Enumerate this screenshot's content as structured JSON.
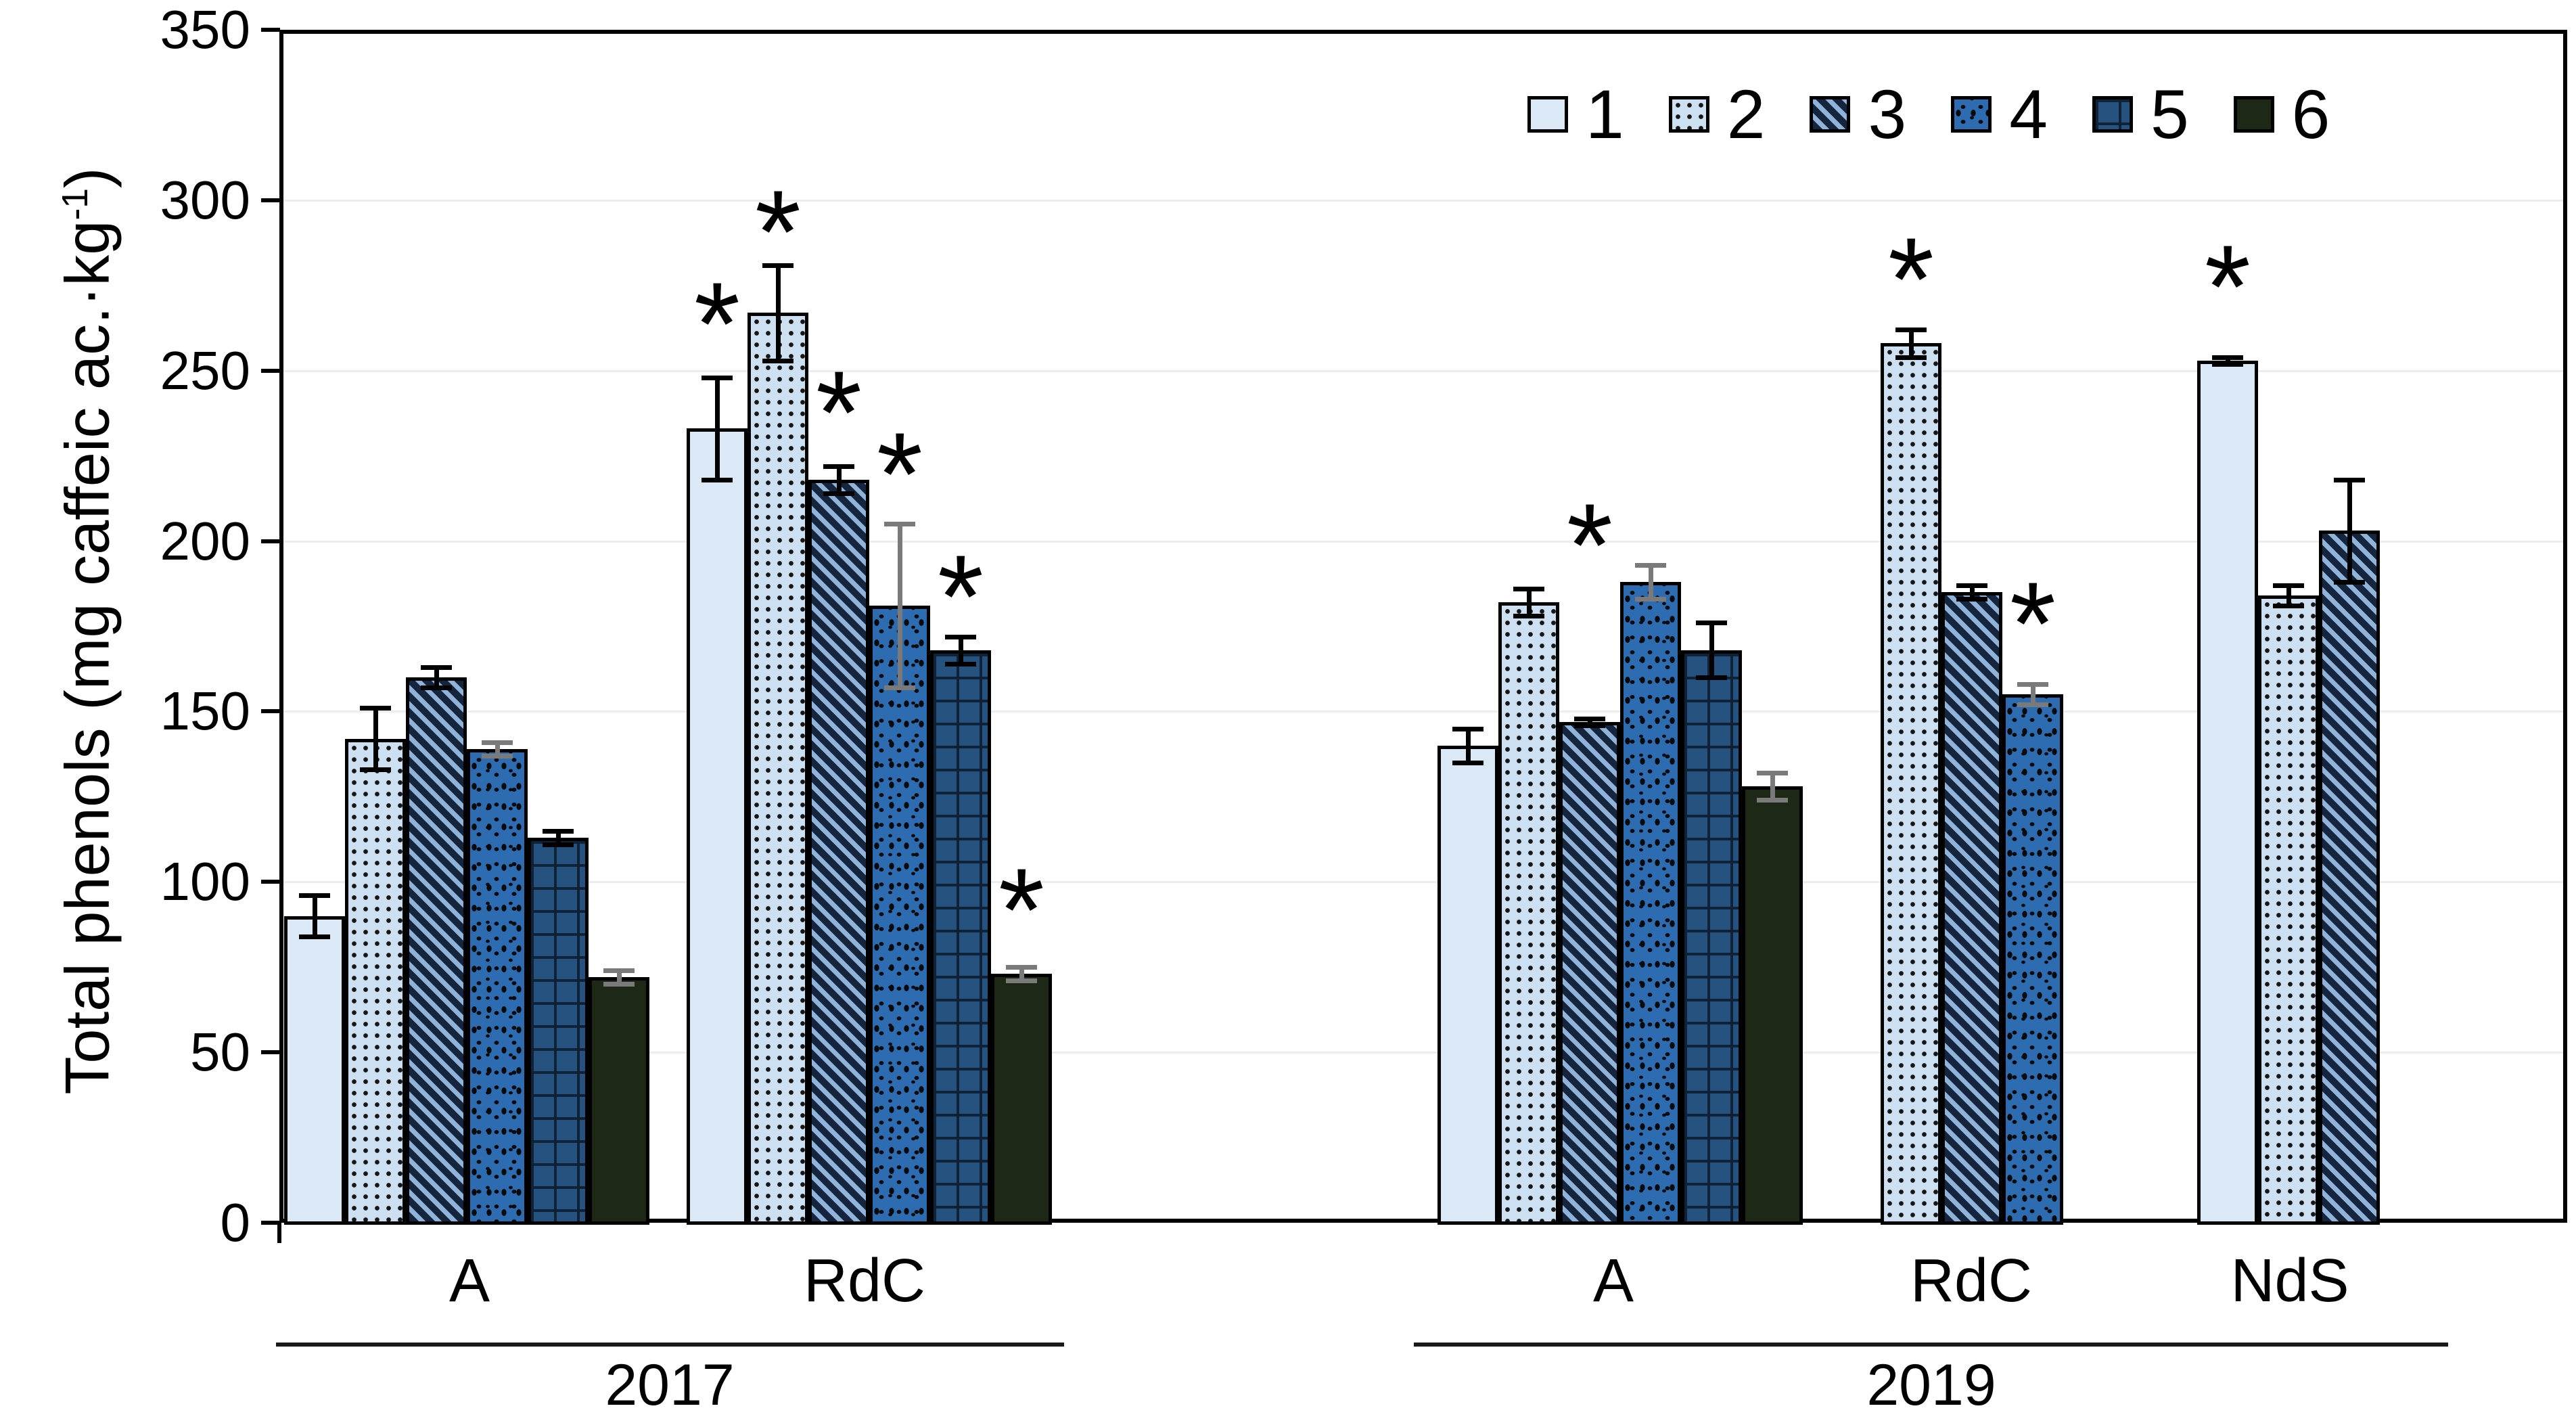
{
  "chart_data": {
    "type": "bar",
    "title": "",
    "ylabel": {
      "prefix": "Total phenols (mg caffeic ac.·kg",
      "superscript": "-1",
      "suffix": ")"
    },
    "ylim": [
      0,
      350
    ],
    "ytick_step": 50,
    "ytick_labels": [
      "0",
      "50",
      "100",
      "150",
      "200",
      "250",
      "300",
      "350"
    ],
    "grid": "horizontal light-gray lines every 50, full black plot frame",
    "grid_color": "#ededed",
    "frame_color": "#000000",
    "star_char": "*",
    "error_bar_colors": {
      "black": "#000000",
      "gray": "#7a7a7a"
    },
    "legend": {
      "position": "top-right inside plot",
      "entries": [
        "1",
        "2",
        "3",
        "4",
        "5",
        "6"
      ]
    },
    "series": [
      {
        "id": "1",
        "label": "1",
        "pattern": "plain-solid",
        "fill": "#dbe8f5"
      },
      {
        "id": "2",
        "label": "2",
        "pattern": "square-dots",
        "fill": "#cde0f1",
        "accent": "#161616"
      },
      {
        "id": "3",
        "label": "3",
        "pattern": "diagonal-stripes",
        "fill": "#8fb3d9",
        "accent": "#15253d"
      },
      {
        "id": "4",
        "label": "4",
        "pattern": "speckle",
        "fill": "#2e6cb2",
        "accent": "#0a0a0a"
      },
      {
        "id": "5",
        "label": "5",
        "pattern": "dashed-grid",
        "fill": "#26527f",
        "accent": "#0e2033"
      },
      {
        "id": "6",
        "label": "6",
        "pattern": "solid-dark-green",
        "fill": "#1d2916"
      }
    ],
    "groups": [
      {
        "year": "2017",
        "site": "A",
        "bars": [
          {
            "series": "1",
            "value": 90,
            "error": 6,
            "error_color": "black",
            "star": false
          },
          {
            "series": "2",
            "value": 142,
            "error": 9,
            "error_color": "black",
            "star": false
          },
          {
            "series": "3",
            "value": 160,
            "error": 3,
            "error_color": "black",
            "star": false
          },
          {
            "series": "4",
            "value": 139,
            "error": 2,
            "error_color": "gray",
            "star": false
          },
          {
            "series": "5",
            "value": 113,
            "error": 2,
            "error_color": "black",
            "star": false
          },
          {
            "series": "6",
            "value": 72,
            "error": 2,
            "error_color": "gray",
            "star": false
          }
        ]
      },
      {
        "year": "2017",
        "site": "RdC",
        "bars": [
          {
            "series": "1",
            "value": 233,
            "error": 15,
            "error_color": "black",
            "star": true,
            "star_y": 271
          },
          {
            "series": "2",
            "value": 267,
            "error": 14,
            "error_color": "black",
            "star": true,
            "star_y": 298
          },
          {
            "series": "3",
            "value": 218,
            "error": 4,
            "error_color": "black",
            "star": true,
            "star_y": 245
          },
          {
            "series": "4",
            "value": 181,
            "error": 24,
            "error_color": "gray",
            "star": true,
            "star_y": 227
          },
          {
            "series": "5",
            "value": 168,
            "error": 4,
            "error_color": "black",
            "star": true,
            "star_y": 191
          },
          {
            "series": "6",
            "value": 73,
            "error": 2,
            "error_color": "gray",
            "star": true,
            "star_y": 99
          }
        ]
      },
      {
        "year": "2019",
        "site": "A",
        "bars": [
          {
            "series": "1",
            "value": 140,
            "error": 5,
            "error_color": "black",
            "star": false
          },
          {
            "series": "2",
            "value": 182,
            "error": 4,
            "error_color": "black",
            "star": false
          },
          {
            "series": "3",
            "value": 147,
            "error": 1,
            "error_color": "black",
            "star": true,
            "star_y": 206
          },
          {
            "series": "4",
            "value": 188,
            "error": 5,
            "error_color": "gray",
            "star": false
          },
          {
            "series": "5",
            "value": 168,
            "error": 8,
            "error_color": "black",
            "star": false
          },
          {
            "series": "6",
            "value": 128,
            "error": 4,
            "error_color": "gray",
            "star": false
          }
        ]
      },
      {
        "year": "2019",
        "site": "RdC",
        "bars": [
          {
            "series": "2",
            "value": 258,
            "error": 4,
            "error_color": "black",
            "star": true,
            "star_y": 284
          },
          {
            "series": "3",
            "value": 185,
            "error": 2,
            "error_color": "black",
            "star": false
          },
          {
            "series": "4",
            "value": 155,
            "error": 3,
            "error_color": "gray",
            "star": true,
            "star_y": 183
          }
        ]
      },
      {
        "year": "2019",
        "site": "NdS",
        "bars": [
          {
            "series": "1",
            "value": 253,
            "error": 1,
            "error_color": "black",
            "star": true,
            "star_y": 282
          },
          {
            "series": "2",
            "value": 184,
            "error": 3,
            "error_color": "black",
            "star": false
          },
          {
            "series": "3",
            "value": 203,
            "error": 15,
            "error_color": "black",
            "star": false
          }
        ]
      }
    ],
    "x_axis": {
      "site_labels": [
        {
          "text": "A",
          "x": 694
        },
        {
          "text": "RdC",
          "x": 1278
        },
        {
          "text": "A",
          "x": 2385
        },
        {
          "text": "RdC",
          "x": 2914
        },
        {
          "text": "NdS",
          "x": 3385
        }
      ],
      "year_sections": [
        {
          "label": "2017",
          "line_x1": 408,
          "line_x2": 1573,
          "label_x": 990
        },
        {
          "label": "2019",
          "line_x1": 2090,
          "line_x2": 3619,
          "label_x": 2855
        }
      ]
    }
  }
}
